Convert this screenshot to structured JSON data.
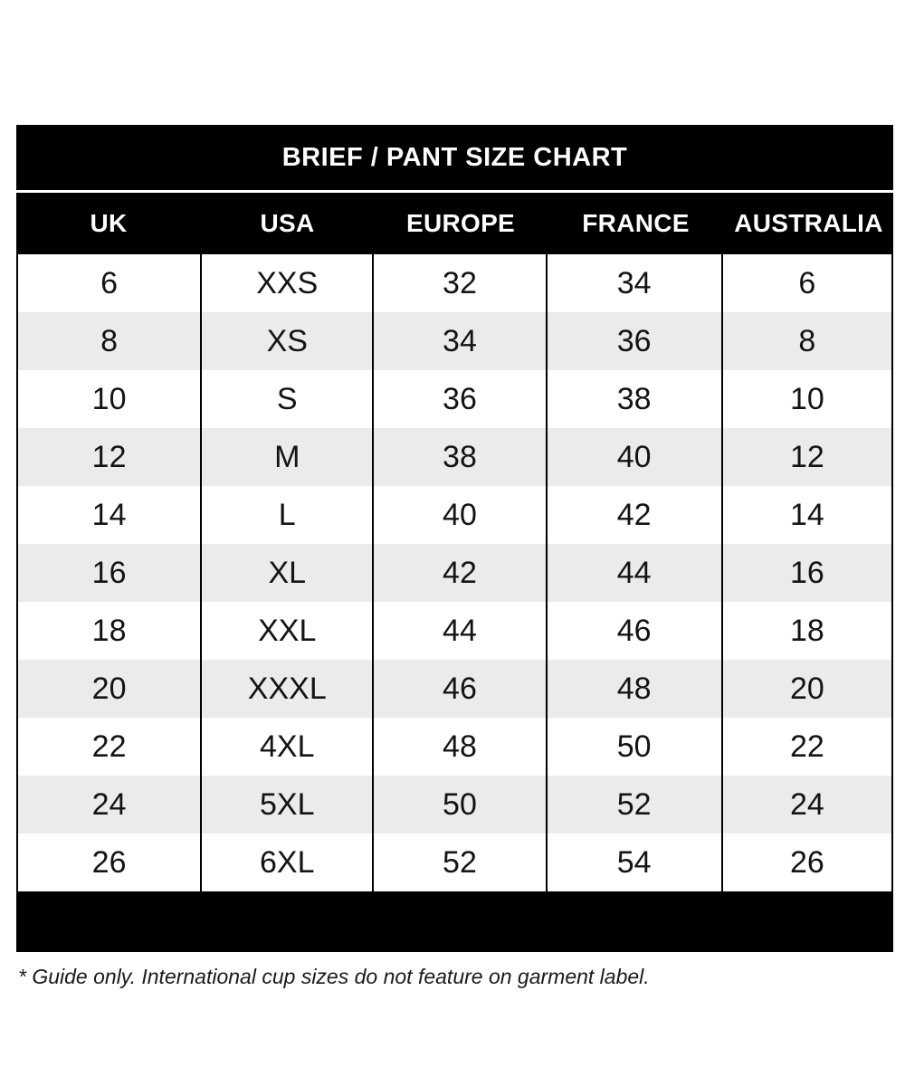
{
  "colors": {
    "bar_background": "#000000",
    "bar_text": "#ffffff",
    "stripe_gray": "#ebebeb",
    "row_white": "#ffffff",
    "cell_text": "#141414",
    "divider_black": "#000000",
    "title_divider_white": "#ffffff"
  },
  "chart_data": {
    "type": "table",
    "title": "BRIEF / PANT SIZE CHART",
    "columns": [
      "UK",
      "USA",
      "EUROPE",
      "FRANCE",
      "AUSTRALIA"
    ],
    "rows": [
      [
        "6",
        "XXS",
        "32",
        "34",
        "6"
      ],
      [
        "8",
        "XS",
        "34",
        "36",
        "8"
      ],
      [
        "10",
        "S",
        "36",
        "38",
        "10"
      ],
      [
        "12",
        "M",
        "38",
        "40",
        "12"
      ],
      [
        "14",
        "L",
        "40",
        "42",
        "14"
      ],
      [
        "16",
        "XL",
        "42",
        "44",
        "16"
      ],
      [
        "18",
        "XXL",
        "44",
        "46",
        "18"
      ],
      [
        "20",
        "XXXL",
        "46",
        "48",
        "20"
      ],
      [
        "22",
        "4XL",
        "48",
        "50",
        "22"
      ],
      [
        "24",
        "5XL",
        "50",
        "52",
        "24"
      ],
      [
        "26",
        "6XL",
        "52",
        "54",
        "26"
      ]
    ],
    "footnote": "* Guide only. International cup sizes do not feature on garment label.",
    "layout": {
      "striping": "alternating rows, odd white / even gray",
      "header_style": "white bold text on black bar",
      "grid": "vertical black column dividers only, no horizontal row lines"
    }
  }
}
